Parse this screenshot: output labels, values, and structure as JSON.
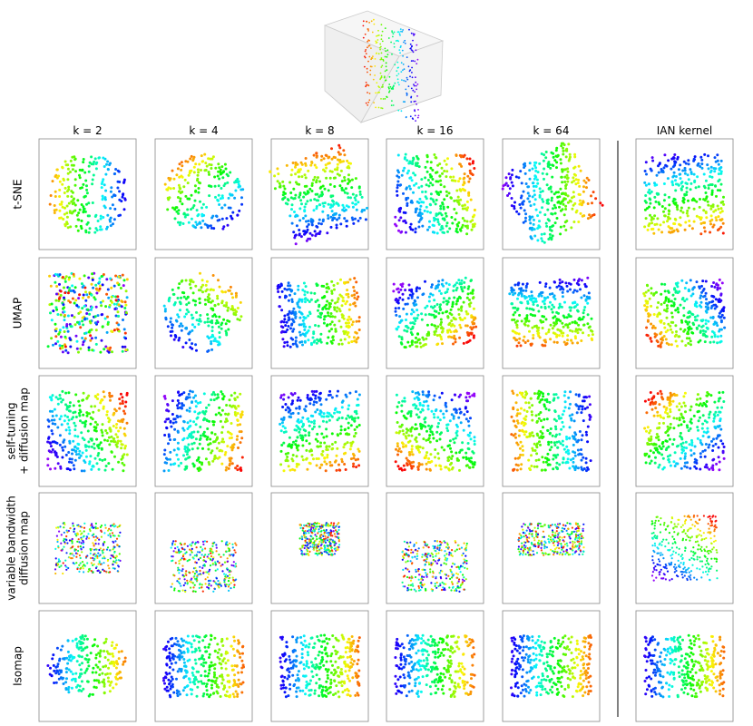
{
  "columns": [
    "k = 2",
    "k = 4",
    "k = 8",
    "k = 16",
    "k = 64",
    "IAN kernel"
  ],
  "rows": [
    [
      "t-SNE"
    ],
    [
      "UMAP"
    ],
    [
      "self-tuning",
      "+ diffusion map"
    ],
    [
      "variable bandwidth",
      "diffusion map"
    ],
    [
      "Isomap"
    ]
  ]
}
